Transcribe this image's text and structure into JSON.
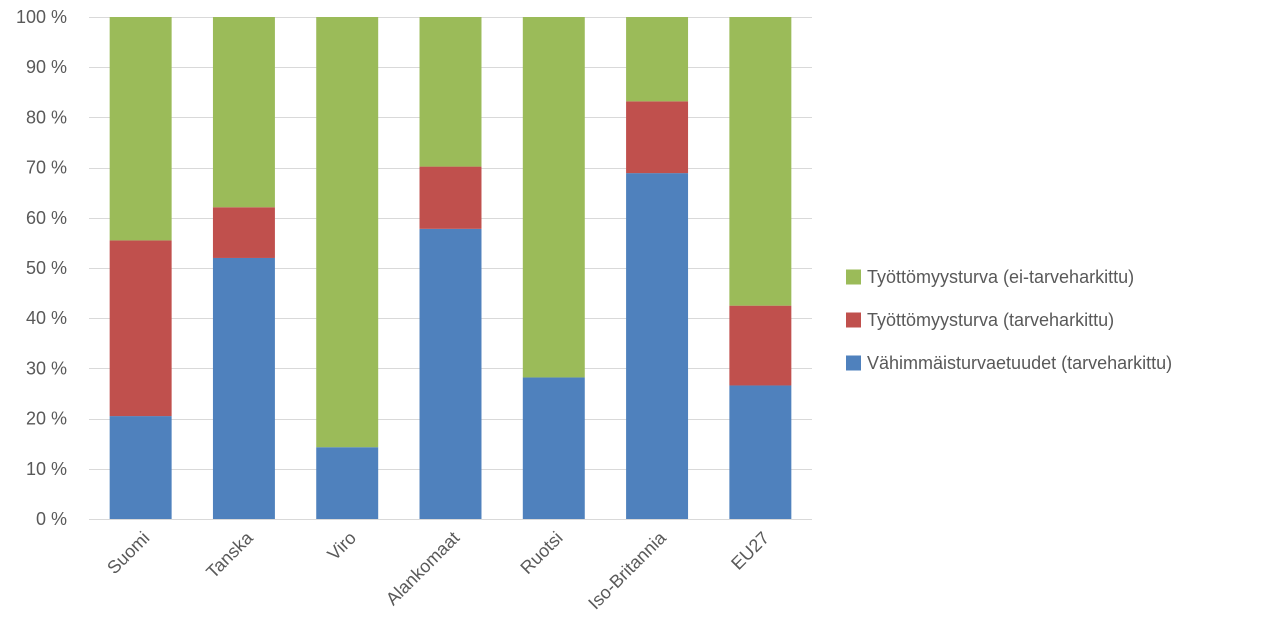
{
  "chart_data": {
    "type": "bar",
    "stacked": true,
    "categories": [
      "Suomi",
      "Tanska",
      "Viro",
      "Alankomaat",
      "Ruotsi",
      "Iso-Britannia",
      "EU27"
    ],
    "series": [
      {
        "name": "Vähimmäisturvaetuudet (tarveharkittu)",
        "color": "#4f81bd",
        "values": [
          20.5,
          52,
          14.3,
          57.8,
          28.2,
          68.9,
          26.6
        ]
      },
      {
        "name": "Työttömyysturva (tarveharkittu)",
        "color": "#c0504d",
        "values": [
          35,
          10.1,
          0,
          12.4,
          0,
          14.3,
          15.9
        ]
      },
      {
        "name": "Työttömyysturva (ei-tarveharkittu)",
        "color": "#9bbb59",
        "values": [
          44.5,
          37.9,
          85.7,
          29.8,
          71.8,
          16.8,
          57.5
        ]
      }
    ],
    "ylim": [
      0,
      100
    ],
    "yticks": [
      0,
      10,
      20,
      30,
      40,
      50,
      60,
      70,
      80,
      90,
      100
    ],
    "ytick_labels": [
      "0 %",
      "10 %",
      "20 %",
      "30 %",
      "40 %",
      "50 %",
      "60 %",
      "70 %",
      "80 %",
      "90 %",
      "100 %"
    ],
    "legend": {
      "placement": "right",
      "order": [
        2,
        1,
        0
      ]
    },
    "grid": true
  }
}
